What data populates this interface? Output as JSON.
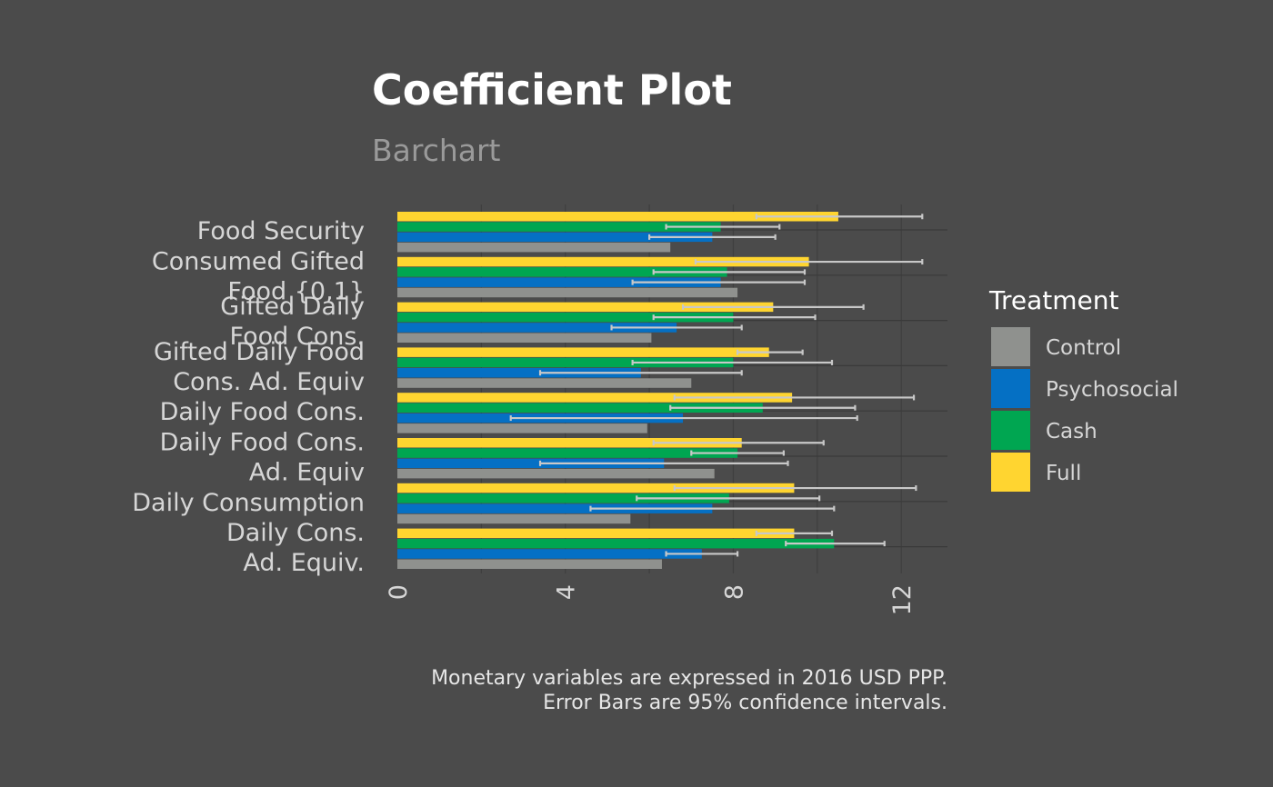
{
  "title": "Coefficient Plot",
  "subtitle": "Barchart",
  "caption": [
    "Monetary variables are expressed in 2016 USD PPP.",
    "Error Bars are 95% confidence intervals."
  ],
  "legend_title": "Treatment",
  "colors": {
    "background": "#4b4b4b",
    "Control": "#8f918e",
    "Psychosocial": "#0570c4",
    "Cash": "#00a651",
    "Full": "#ffd530",
    "errorbar": "#c8c8c8",
    "text": "#d6d6d6"
  },
  "chart_data": {
    "type": "bar",
    "orientation": "horizontal",
    "title": "Coefficient Plot",
    "subtitle": "Barchart",
    "xlabel": "",
    "ylabel": "",
    "xlim": [
      0,
      13.1
    ],
    "x_ticks": [
      "0",
      "4",
      "8",
      "12"
    ],
    "grid": true,
    "legend_position": "right",
    "categories": [
      [
        "Food Security"
      ],
      [
        "Consumed Gifted",
        "Food {0,1}"
      ],
      [
        "Gifted Daily",
        "Food Cons."
      ],
      [
        "Gifted Daily Food",
        "Cons. Ad. Equiv"
      ],
      [
        "Daily Food Cons."
      ],
      [
        "Daily Food Cons.",
        "Ad. Equiv"
      ],
      [
        "Daily Consumption"
      ],
      [
        "Daily Cons.",
        "Ad. Equiv."
      ]
    ],
    "series": [
      {
        "name": "Control",
        "values": [
          6.5,
          8.1,
          6.05,
          7.0,
          5.95,
          7.55,
          5.55,
          6.3
        ]
      },
      {
        "name": "Psychosocial",
        "values": [
          7.5,
          7.7,
          6.65,
          5.8,
          6.8,
          6.35,
          7.5,
          7.25
        ],
        "ci_low": [
          6.0,
          5.6,
          5.1,
          3.4,
          2.7,
          3.4,
          4.6,
          6.4
        ],
        "ci_high": [
          9.0,
          9.7,
          8.2,
          8.2,
          10.95,
          9.3,
          10.4,
          8.1
        ]
      },
      {
        "name": "Cash",
        "values": [
          7.7,
          7.85,
          8.0,
          8.0,
          8.7,
          8.1,
          7.9,
          10.4
        ],
        "ci_low": [
          6.4,
          6.1,
          6.1,
          5.6,
          6.5,
          7.0,
          5.7,
          9.25
        ],
        "ci_high": [
          9.1,
          9.7,
          9.95,
          10.35,
          10.9,
          9.2,
          10.05,
          11.6
        ]
      },
      {
        "name": "Full",
        "values": [
          10.5,
          9.8,
          8.95,
          8.85,
          9.4,
          8.2,
          9.45,
          9.45
        ],
        "ci_low": [
          8.55,
          7.1,
          6.8,
          8.1,
          6.6,
          6.1,
          6.6,
          8.55
        ],
        "ci_high": [
          12.5,
          12.5,
          11.1,
          9.65,
          12.3,
          10.15,
          12.35,
          10.35
        ]
      }
    ]
  }
}
